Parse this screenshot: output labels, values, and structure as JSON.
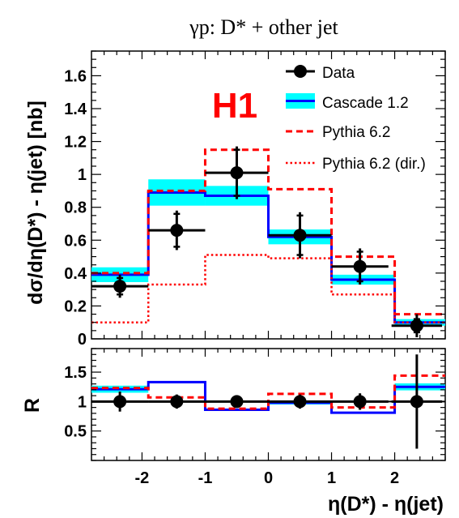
{
  "chart_data": [
    {
      "type": "histogram",
      "title": "γp:  D* + other jet",
      "ylabel": "dσ/dη(D*) - η(jet) [nb]",
      "xlabel": "",
      "xlim": [
        -2.8,
        2.8
      ],
      "ylim": [
        0,
        1.75
      ],
      "x_ticks": [
        -2,
        -1,
        0,
        1,
        2
      ],
      "y_ticks": [
        0,
        0.2,
        0.4,
        0.6,
        0.8,
        1,
        1.2,
        1.4,
        1.6
      ],
      "y_tick_labels": [
        "0",
        "0.2",
        "0.4",
        "0.6",
        "0.8",
        "1",
        "1.2",
        "1.4",
        "1.6"
      ],
      "logo": "H1",
      "bin_edges": [
        -2.8,
        -1.9,
        -1.0,
        0.0,
        1.0,
        2.0,
        2.8
      ],
      "data": {
        "name": "Data",
        "x": [
          -2.35,
          -1.45,
          -0.5,
          0.5,
          1.45,
          2.35
        ],
        "xerr": [
          0.45,
          0.45,
          0.5,
          0.5,
          0.45,
          0.4
        ],
        "y": [
          0.32,
          0.66,
          1.01,
          0.63,
          0.44,
          0.08
        ],
        "yerr_stat": [
          0.05,
          0.1,
          0.14,
          0.12,
          0.09,
          0.04
        ],
        "yerr_tot": [
          0.07,
          0.12,
          0.16,
          0.14,
          0.11,
          0.07
        ]
      },
      "series": [
        {
          "name": "Cascade 1.2",
          "style": "solid",
          "color": "#0000ff",
          "band_color": "#00ffff",
          "values": [
            0.39,
            0.89,
            0.87,
            0.62,
            0.36,
            0.1
          ],
          "band": [
            0.045,
            0.08,
            0.06,
            0.045,
            0.03,
            0.02
          ]
        },
        {
          "name": "Pythia 6.2",
          "style": "dashed",
          "color": "#ff0000",
          "values": [
            0.4,
            0.9,
            1.15,
            0.91,
            0.5,
            0.15
          ]
        },
        {
          "name": "Pythia 6.2 (dir.)",
          "style": "dotted",
          "color": "#ff0000",
          "values": [
            0.1,
            0.33,
            0.51,
            0.49,
            0.27,
            0.1
          ]
        }
      ]
    },
    {
      "type": "histogram",
      "xlabel": "η(D*) - η(jet)",
      "ylabel": "R",
      "xlim": [
        -2.8,
        2.8
      ],
      "ylim": [
        0,
        1.9
      ],
      "x_ticks": [
        -2,
        -1,
        0,
        1,
        2
      ],
      "x_tick_labels": [
        "-2",
        "-1",
        "0",
        "1",
        "2"
      ],
      "y_ticks": [
        0.5,
        1,
        1.5
      ],
      "y_tick_labels": [
        "0.5",
        "1",
        "1.5"
      ],
      "bin_edges": [
        -2.8,
        -1.9,
        -1.0,
        0.0,
        1.0,
        2.0,
        2.8
      ],
      "data": {
        "x": [
          -2.35,
          -1.45,
          -0.5,
          0.5,
          1.45,
          2.35
        ],
        "xerr": [
          0.45,
          0.45,
          0.5,
          0.5,
          0.45,
          0.4
        ],
        "y": [
          1,
          1,
          1,
          1,
          1,
          1
        ],
        "yerr": [
          0.17,
          0.12,
          0.05,
          0.12,
          0.14,
          0.8
        ]
      },
      "series": [
        {
          "name": "Cascade 1.2",
          "style": "solid",
          "color": "#0000ff",
          "band_color": "#00ffff",
          "values": [
            1.21,
            1.33,
            0.86,
            0.98,
            0.81,
            1.25
          ],
          "band": [
            0.06,
            0.0,
            0.0,
            0.03,
            0.0,
            0.06
          ]
        },
        {
          "name": "Pythia 6.2",
          "style": "dashed",
          "color": "#ff0000",
          "values": [
            1.23,
            1.07,
            0.88,
            1.13,
            0.9,
            1.44
          ]
        }
      ]
    }
  ]
}
